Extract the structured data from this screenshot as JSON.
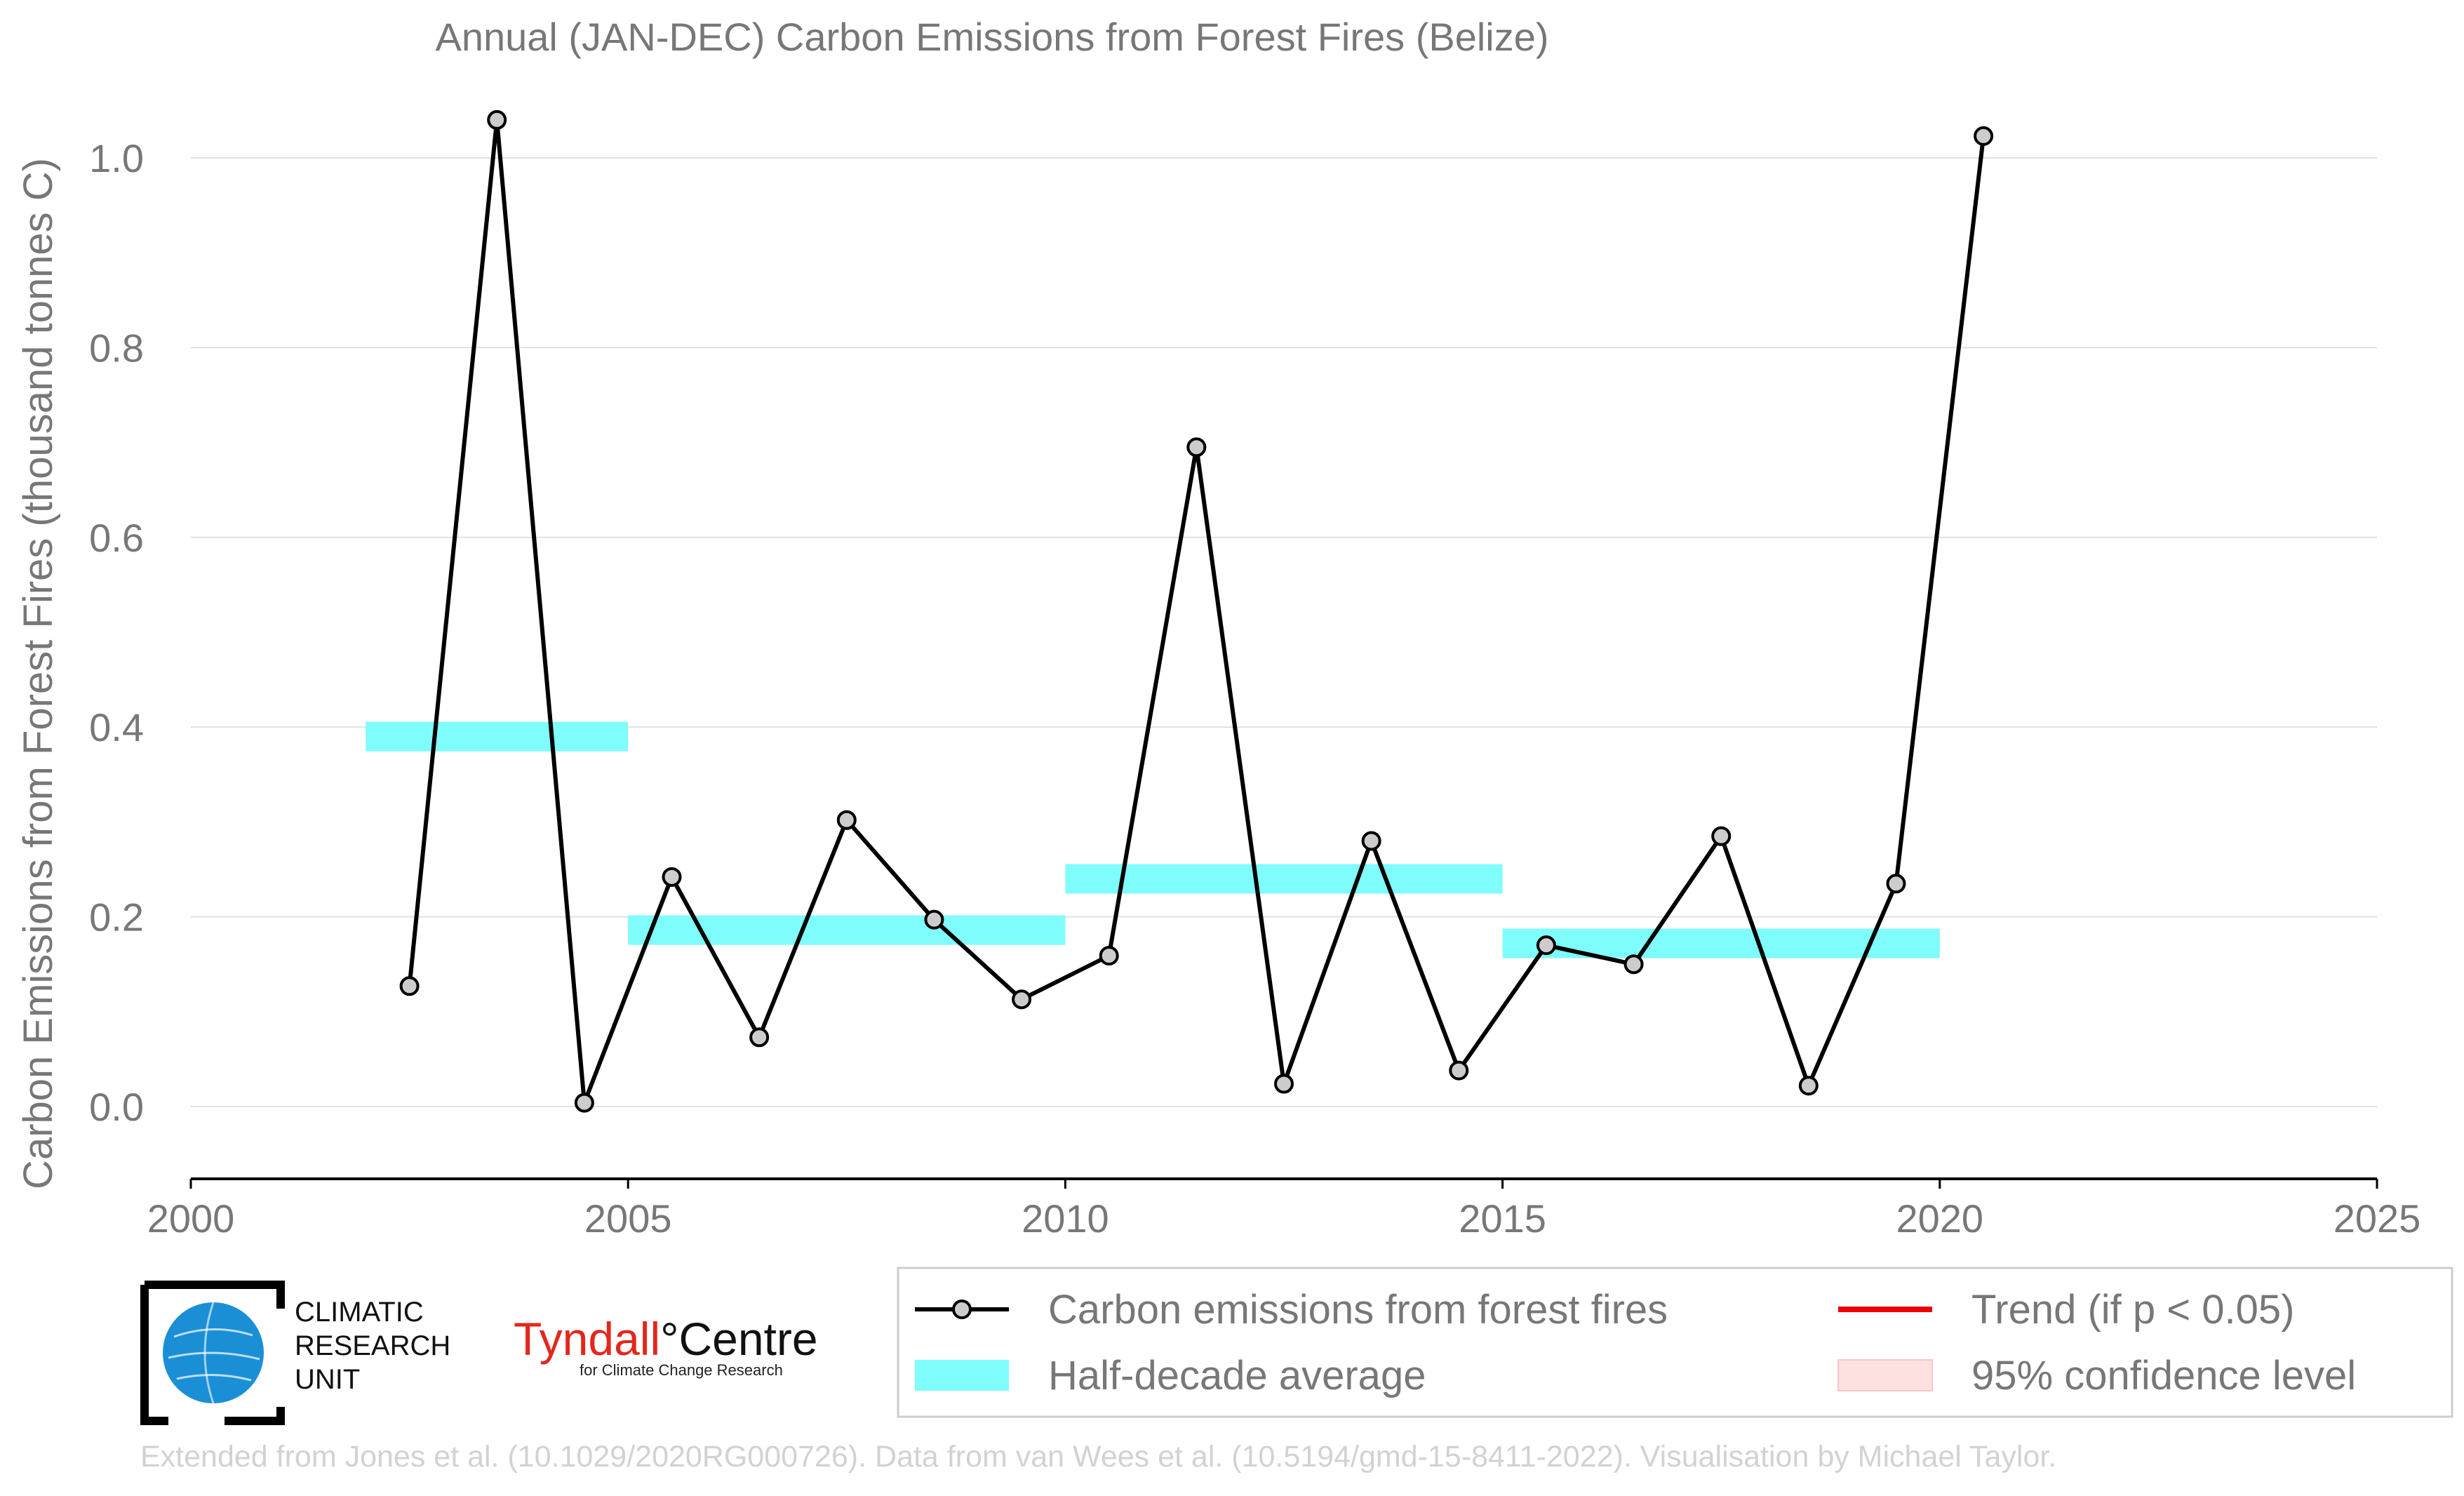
{
  "chart_data": {
    "type": "line",
    "title": "Annual (JAN-DEC) Carbon Emissions from Forest Fires (Belize)",
    "xlabel": "",
    "ylabel": "Carbon Emissions from Forest Fires (thousand tonnes C)",
    "xlim": [
      2000,
      2025
    ],
    "ylim": [
      -0.08,
      1.1
    ],
    "x_ticks": [
      "2000",
      "2005",
      "2010",
      "2015",
      "2020",
      "2025"
    ],
    "y_ticks": [
      "0.0",
      "0.2",
      "0.4",
      "0.6",
      "0.8",
      "1.0"
    ],
    "grid": "horizontal",
    "legend_placement": "below",
    "series": [
      {
        "name": "Carbon emissions from forest fires",
        "color": "#000000",
        "marker_fill": "#cccccc",
        "x": [
          2002.5,
          2003.5,
          2004.5,
          2005.5,
          2006.5,
          2007.5,
          2008.5,
          2009.5,
          2010.5,
          2011.5,
          2012.5,
          2013.5,
          2014.5,
          2015.5,
          2016.5,
          2017.5,
          2018.5,
          2019.5,
          2020.5
        ],
        "values": [
          0.127,
          1.04,
          0.004,
          0.242,
          0.073,
          0.302,
          0.197,
          0.113,
          0.159,
          0.695,
          0.024,
          0.28,
          0.038,
          0.17,
          0.15,
          0.285,
          0.022,
          0.235,
          1.023
        ]
      },
      {
        "name": "Half-decade average",
        "color": "#7ffcfc",
        "segments": [
          {
            "x_start": 2002,
            "x_end": 2005,
            "value": 0.39
          },
          {
            "x_start": 2005,
            "x_end": 2010,
            "value": 0.186
          },
          {
            "x_start": 2010,
            "x_end": 2015,
            "value": 0.24
          },
          {
            "x_start": 2015,
            "x_end": 2020,
            "value": 0.172
          }
        ]
      }
    ],
    "legend": [
      {
        "label": "Carbon emissions from forest fires",
        "kind": "line-marker",
        "color": "#000000"
      },
      {
        "label": "Trend (if p < 0.05)",
        "kind": "line",
        "color": "#ee0000"
      },
      {
        "label": "Half-decade average",
        "kind": "patch",
        "color": "#7ffcfc"
      },
      {
        "label": "95% confidence level",
        "kind": "patch",
        "color": "#fde0e0"
      }
    ]
  },
  "logos": {
    "cru_text": [
      "CLIMATIC",
      "RESEARCH",
      "UNIT"
    ],
    "tyndall_red": "Tyndall",
    "tyndall_black": "°Centre",
    "tyndall_sub": "for Climate Change Research"
  },
  "footer": "Extended from Jones et al. (10.1029/2020RG000726). Data from van Wees et al. (10.5194/gmd-15-8411-2022). Visualisation by Michael Taylor."
}
